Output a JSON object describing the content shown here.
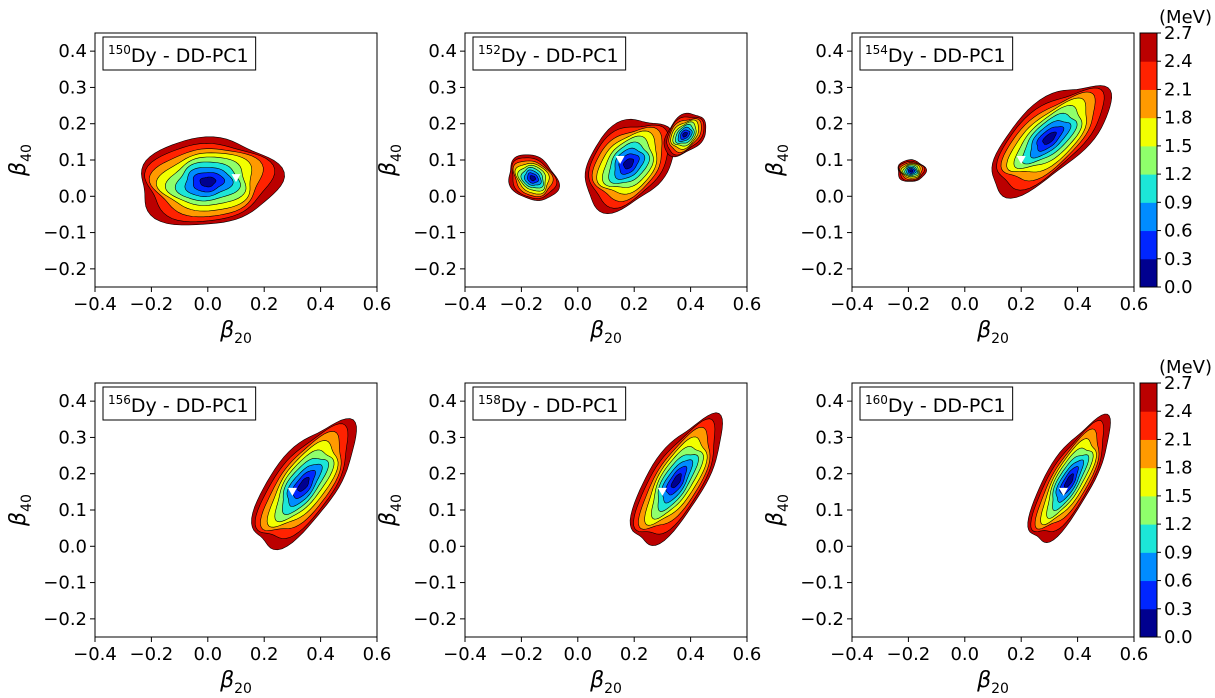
{
  "chart_data": [
    {
      "type": "contour",
      "panel_label": {
        "pre": "150",
        "post": "Dy - DD-PC1"
      },
      "minimum": {
        "x": 0.1,
        "y": 0.05
      },
      "blobs": [
        {
          "cx": 0.0,
          "cy": 0.04,
          "rx": 0.25,
          "ry": 0.12,
          "theta": 0.05
        }
      ]
    },
    {
      "type": "contour",
      "panel_label": {
        "pre": "152",
        "post": "Dy - DD-PC1"
      },
      "minimum": {
        "x": 0.15,
        "y": 0.1
      },
      "blobs": [
        {
          "cx": -0.16,
          "cy": 0.05,
          "rx": 0.09,
          "ry": 0.06,
          "theta": -0.3
        },
        {
          "cx": 0.18,
          "cy": 0.09,
          "rx": 0.17,
          "ry": 0.11,
          "theta": 0.5
        },
        {
          "cx": 0.38,
          "cy": 0.17,
          "rx": 0.08,
          "ry": 0.05,
          "theta": 0.5
        }
      ]
    },
    {
      "type": "contour",
      "panel_label": {
        "pre": "154",
        "post": "Dy - DD-PC1"
      },
      "minimum": {
        "x": 0.2,
        "y": 0.1
      },
      "blobs": [
        {
          "cx": -0.19,
          "cy": 0.07,
          "rx": 0.05,
          "ry": 0.03,
          "theta": 0.0
        },
        {
          "cx": 0.3,
          "cy": 0.16,
          "rx": 0.24,
          "ry": 0.1,
          "theta": 0.55
        }
      ]
    },
    {
      "type": "contour",
      "panel_label": {
        "pre": "156",
        "post": "Dy - DD-PC1"
      },
      "minimum": {
        "x": 0.3,
        "y": 0.15
      },
      "blobs": [
        {
          "cx": 0.34,
          "cy": 0.17,
          "rx": 0.23,
          "ry": 0.1,
          "theta": 0.75
        }
      ]
    },
    {
      "type": "contour",
      "panel_label": {
        "pre": "158",
        "post": "Dy - DD-PC1"
      },
      "minimum": {
        "x": 0.3,
        "y": 0.15
      },
      "blobs": [
        {
          "cx": 0.35,
          "cy": 0.18,
          "rx": 0.22,
          "ry": 0.09,
          "theta": 0.85
        }
      ]
    },
    {
      "type": "contour",
      "panel_label": {
        "pre": "160",
        "post": "Dy - DD-PC1"
      },
      "minimum": {
        "x": 0.35,
        "y": 0.15
      },
      "blobs": [
        {
          "cx": 0.37,
          "cy": 0.18,
          "rx": 0.21,
          "ry": 0.075,
          "theta": 0.9
        }
      ]
    }
  ],
  "axes": {
    "xlabel": {
      "sym": "β",
      "sub": "20"
    },
    "ylabel": {
      "sym": "β",
      "sub": "40"
    },
    "xlim": [
      -0.4,
      0.6
    ],
    "ylim": [
      -0.25,
      0.45
    ],
    "xticks": [
      "−0.4",
      "−0.2",
      "0.0",
      "0.2",
      "0.4",
      "0.6"
    ],
    "xtick_values": [
      -0.4,
      -0.2,
      0.0,
      0.2,
      0.4,
      0.6
    ],
    "yticks": [
      "−0.2",
      "−0.1",
      "0.0",
      "0.1",
      "0.2",
      "0.3",
      "0.4"
    ],
    "ytick_values": [
      -0.2,
      -0.1,
      0.0,
      0.1,
      0.2,
      0.3,
      0.4
    ]
  },
  "colorbar": {
    "unit": "(MeV)",
    "levels": [
      0.0,
      0.3,
      0.6,
      0.9,
      1.2,
      1.5,
      1.8,
      2.1,
      2.4,
      2.7
    ],
    "tick_labels": [
      "0.0",
      "0.3",
      "0.6",
      "0.9",
      "1.2",
      "1.5",
      "1.8",
      "2.1",
      "2.4",
      "2.7"
    ],
    "colors": [
      "#00008f",
      "#0026ff",
      "#008cff",
      "#1ce6d8",
      "#8fff6b",
      "#f2ff00",
      "#ff9a00",
      "#ff2200",
      "#bb0000"
    ]
  }
}
